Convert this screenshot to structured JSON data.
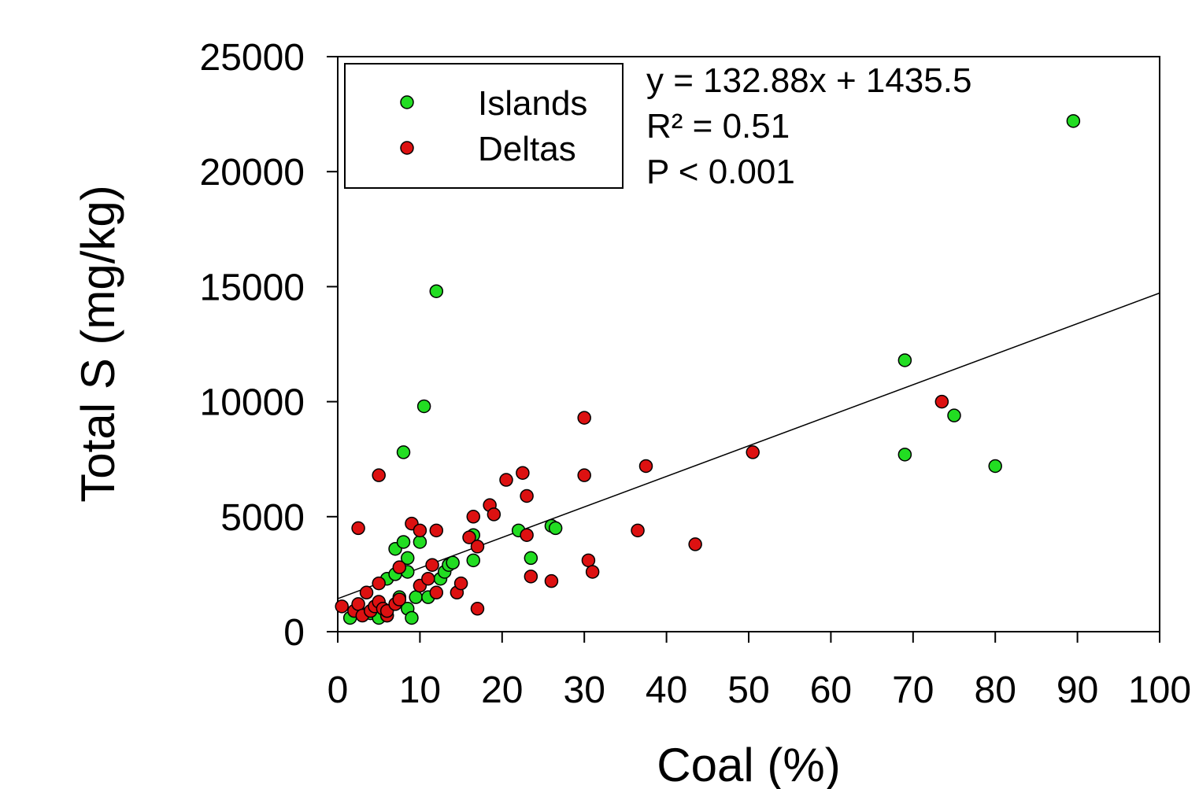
{
  "chart_data": {
    "type": "scatter",
    "xlabel": "Coal (%)",
    "ylabel": "Total S (mg/kg)",
    "xlim": [
      0,
      100
    ],
    "ylim": [
      0,
      25000
    ],
    "xticks": [
      0,
      10,
      20,
      30,
      40,
      50,
      60,
      70,
      80,
      90,
      100
    ],
    "yticks": [
      0,
      5000,
      10000,
      15000,
      20000,
      25000
    ],
    "grid": false,
    "legend_position": "top-left",
    "annotations": [
      "y = 132.88x + 1435.5",
      "R² = 0.51",
      "P < 0.001"
    ],
    "trendline": {
      "slope": 132.88,
      "intercept": 1435.5,
      "x_range": [
        0,
        100
      ]
    },
    "series": [
      {
        "name": "Islands",
        "color": "#22dd22",
        "points": [
          [
            1.5,
            600
          ],
          [
            2.5,
            900
          ],
          [
            4,
            800
          ],
          [
            5,
            600
          ],
          [
            6,
            700
          ],
          [
            6,
            2300
          ],
          [
            7,
            2500
          ],
          [
            7,
            3600
          ],
          [
            7.5,
            1500
          ],
          [
            8,
            3900
          ],
          [
            8,
            7800
          ],
          [
            8.5,
            3200
          ],
          [
            8.5,
            1000
          ],
          [
            8.5,
            2600
          ],
          [
            9,
            600
          ],
          [
            9.5,
            1500
          ],
          [
            10,
            3900
          ],
          [
            10.5,
            9800
          ],
          [
            11,
            1500
          ],
          [
            12,
            14800
          ],
          [
            12.5,
            2300
          ],
          [
            13,
            2600
          ],
          [
            13.5,
            2900
          ],
          [
            14,
            3000
          ],
          [
            16.5,
            3100
          ],
          [
            16.5,
            4200
          ],
          [
            22,
            4400
          ],
          [
            23.5,
            3200
          ],
          [
            26,
            4600
          ],
          [
            26.5,
            4500
          ],
          [
            69,
            11800
          ],
          [
            69,
            7700
          ],
          [
            75,
            9400
          ],
          [
            80,
            7200
          ],
          [
            89.5,
            22200
          ]
        ]
      },
      {
        "name": "Deltas",
        "color": "#dd1111",
        "points": [
          [
            0.5,
            1100
          ],
          [
            2,
            900
          ],
          [
            2.5,
            1200
          ],
          [
            2.5,
            4500
          ],
          [
            3,
            700
          ],
          [
            3.5,
            1700
          ],
          [
            4,
            900
          ],
          [
            4.5,
            1100
          ],
          [
            5,
            1300
          ],
          [
            5,
            2100
          ],
          [
            5,
            6800
          ],
          [
            5.5,
            1000
          ],
          [
            6,
            700
          ],
          [
            6,
            900
          ],
          [
            7,
            1200
          ],
          [
            7.5,
            1400
          ],
          [
            7.5,
            2800
          ],
          [
            9,
            4700
          ],
          [
            10,
            4400
          ],
          [
            10,
            2000
          ],
          [
            11,
            2300
          ],
          [
            11.5,
            2900
          ],
          [
            12,
            4400
          ],
          [
            12,
            1700
          ],
          [
            14.5,
            1700
          ],
          [
            15,
            2100
          ],
          [
            16,
            4100
          ],
          [
            16.5,
            5000
          ],
          [
            17,
            3700
          ],
          [
            17,
            1000
          ],
          [
            18.5,
            5500
          ],
          [
            19,
            5100
          ],
          [
            20.5,
            6600
          ],
          [
            22.5,
            6900
          ],
          [
            23,
            5900
          ],
          [
            23,
            4200
          ],
          [
            23.5,
            2400
          ],
          [
            26,
            2200
          ],
          [
            30,
            9300
          ],
          [
            30,
            6800
          ],
          [
            30.5,
            3100
          ],
          [
            31,
            2600
          ],
          [
            36.5,
            4400
          ],
          [
            37.5,
            7200
          ],
          [
            43.5,
            3800
          ],
          [
            50.5,
            7800
          ],
          [
            73.5,
            10000
          ]
        ]
      }
    ]
  }
}
